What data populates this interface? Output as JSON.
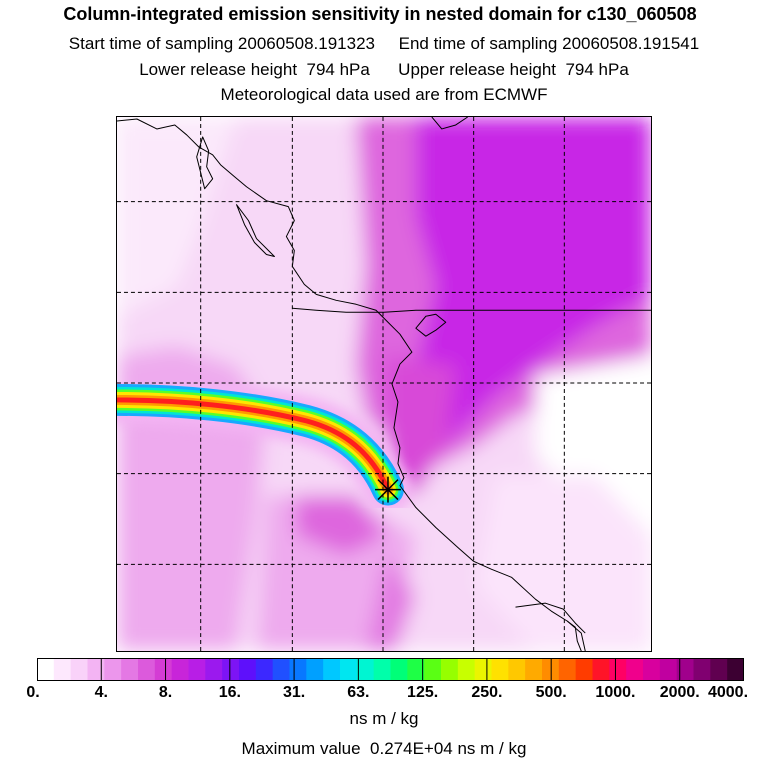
{
  "title": "Column-integrated emission sensitivity in nested domain for c130_060508",
  "sampling": {
    "start": "Start time of sampling 20060508.191323",
    "end": "End time of sampling 20060508.191541"
  },
  "release": {
    "lower": "Lower release height  794 hPa",
    "upper": "Upper release height  794 hPa"
  },
  "met": "Meteorological data used are from ECMWF",
  "colorbar": {
    "tick_labels": [
      "0.",
      "4.",
      "8.",
      "16.",
      "31.",
      "63.",
      "125.",
      "250.",
      "500.",
      "1000.",
      "2000.",
      "4000."
    ],
    "colors": [
      "#ffffff",
      "#fde8fd",
      "#f9d2f9",
      "#f3b4f3",
      "#ec96ec",
      "#e478e4",
      "#dc5adc",
      "#d43cd4",
      "#c825d9",
      "#b81ee6",
      "#9b19ee",
      "#7d14f5",
      "#5e10fb",
      "#3c28ff",
      "#2050ff",
      "#0878ff",
      "#00a0ff",
      "#00c8ff",
      "#00e6f0",
      "#00f5d2",
      "#00ffaa",
      "#00ff78",
      "#1eff46",
      "#5aff14",
      "#96ff00",
      "#c8ff00",
      "#ebf500",
      "#ffe100",
      "#ffc800",
      "#ffaa00",
      "#ff8c00",
      "#ff6400",
      "#ff3c00",
      "#ff1428",
      "#ff0064",
      "#f0008c",
      "#d8009e",
      "#c000a0",
      "#a0008c",
      "#800070",
      "#600050",
      "#3c0032"
    ],
    "units": "ns m / kg"
  },
  "max_value": "Maximum value  0.274E+04 ns m / kg",
  "map": {
    "release_marker": "release-point-star",
    "plume_colors": [
      "#ff1e1e",
      "#ff9a00",
      "#ffe600",
      "#58ff2a",
      "#00e6d2",
      "#18a8ff"
    ],
    "field_colors": [
      "#ffffff",
      "#f7d8f7",
      "#eeaaee",
      "#de66de",
      "#c828e6",
      "#b018ee"
    ]
  }
}
